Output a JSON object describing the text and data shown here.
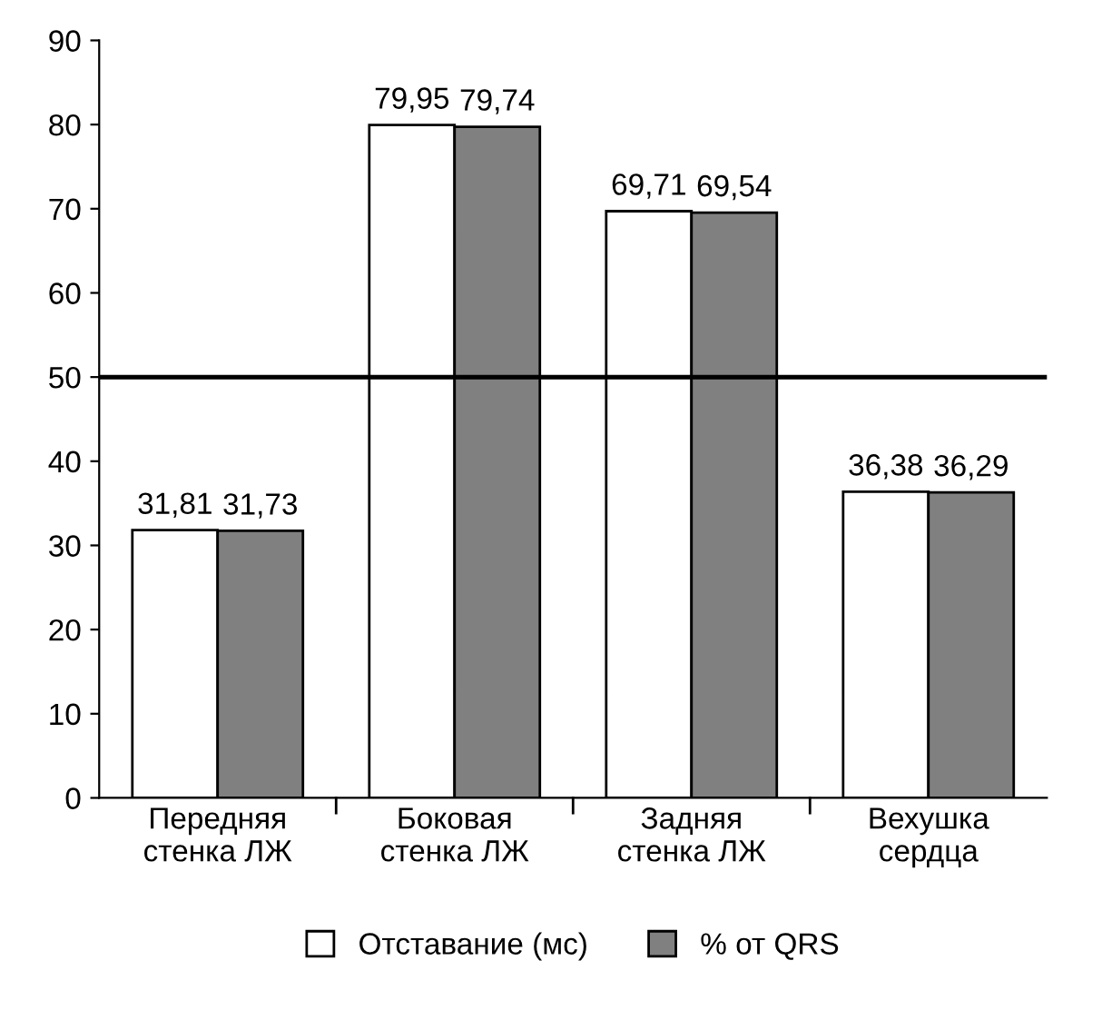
{
  "chart_data": {
    "type": "bar",
    "categories": [
      "Передняя\nстенка ЛЖ",
      "Боковая\nстенка ЛЖ",
      "Задняя\nстенка ЛЖ",
      "Вехушка\nсердца"
    ],
    "series": [
      {
        "name": "Отставание (мс)",
        "color": "#ffffff",
        "values": [
          31.81,
          79.95,
          69.71,
          36.38
        ],
        "value_labels": [
          "31,81",
          "79,95",
          "69,71",
          "36,38"
        ]
      },
      {
        "name": "% от QRS",
        "color": "#808080",
        "values": [
          31.73,
          79.74,
          69.54,
          36.29
        ],
        "value_labels": [
          "31,73",
          "79,74",
          "69,54",
          "36,29"
        ]
      }
    ],
    "ylim": [
      0,
      90
    ],
    "yticks": [
      0,
      10,
      20,
      30,
      40,
      50,
      60,
      70,
      80,
      90
    ],
    "grid": false,
    "legend": "bottom",
    "ref_lines": [
      {
        "axis": "y",
        "value": 50,
        "color": "#000000"
      }
    ]
  }
}
